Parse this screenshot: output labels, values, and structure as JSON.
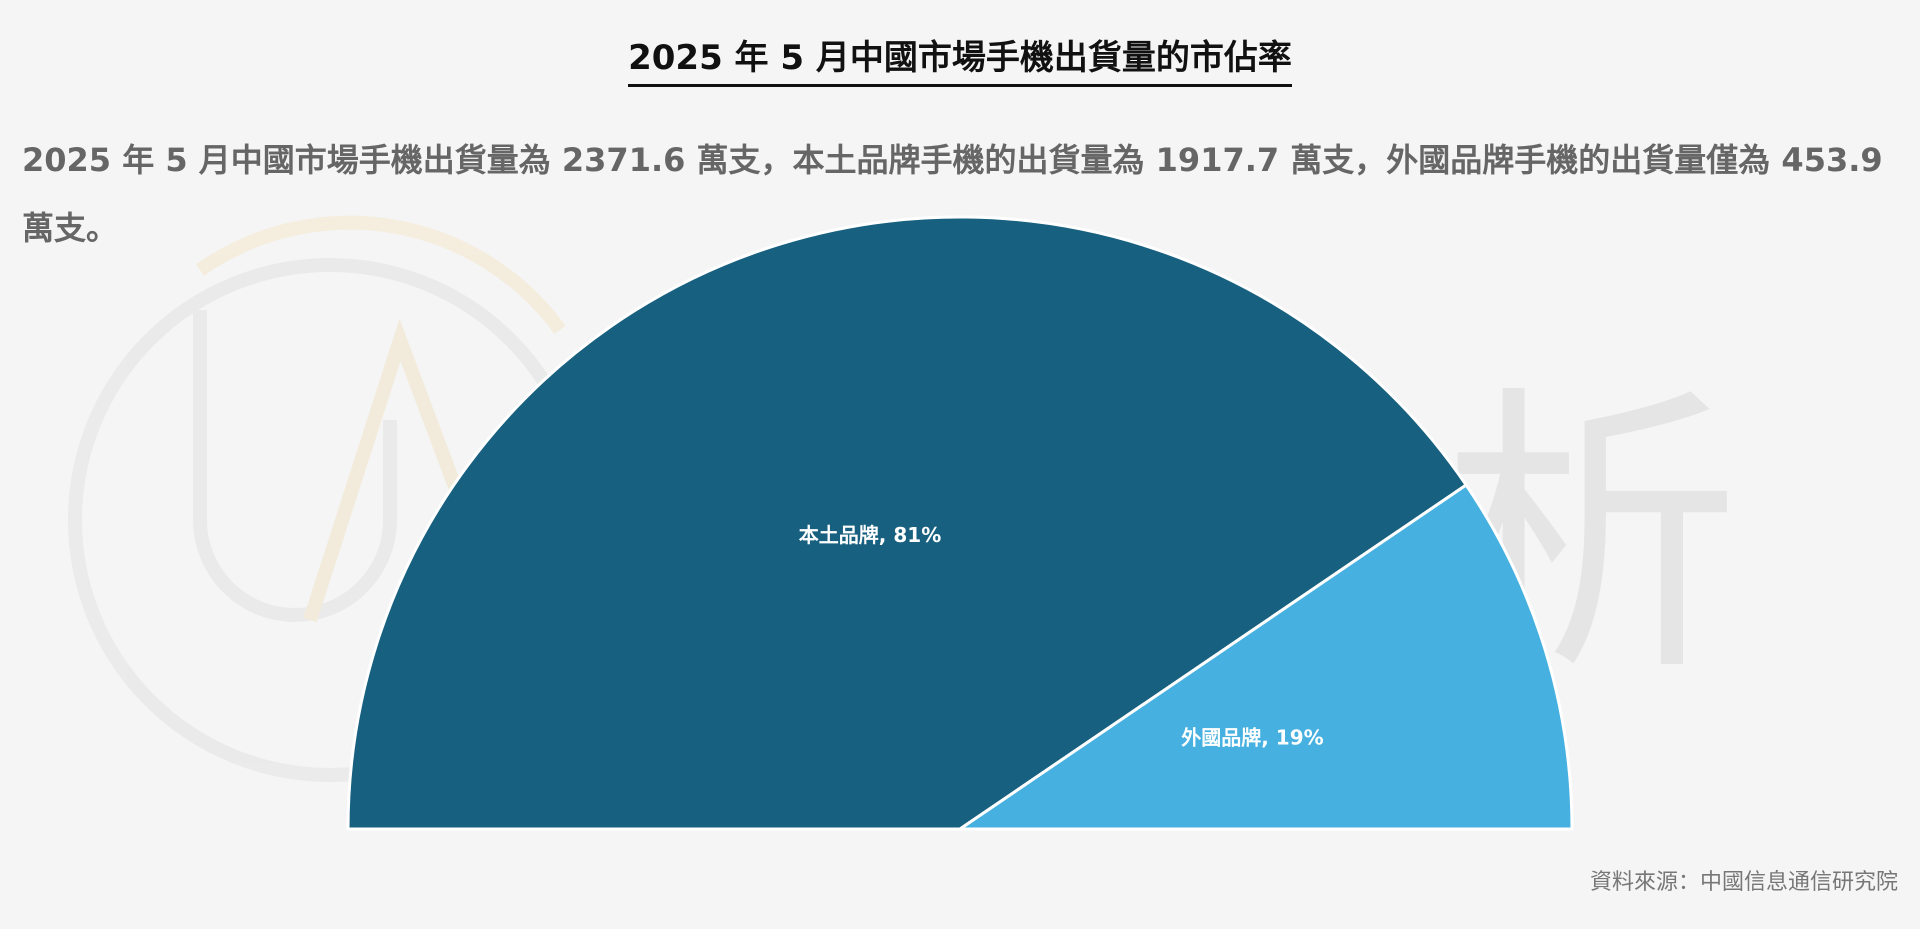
{
  "chart_data": {
    "type": "half-pie",
    "title": "2025 年 5 月中國市場手機出貨量的市佔率",
    "subtitle": "2025 年 5 月中國市場手機出貨量為 2371.6 萬支，本土品牌手機的出貨量為 1917.7 萬支，外國品牌手機的出貨量僅為 453.9 萬支。",
    "values": [
      81,
      19
    ],
    "value_labels": [
      "本土品牌, 81%",
      "外國品牌, 19%"
    ],
    "colors": [
      "#17607f",
      "#46b0e0"
    ],
    "watermark": "優分析",
    "source": "資料來源：中國信息通信研究院"
  }
}
